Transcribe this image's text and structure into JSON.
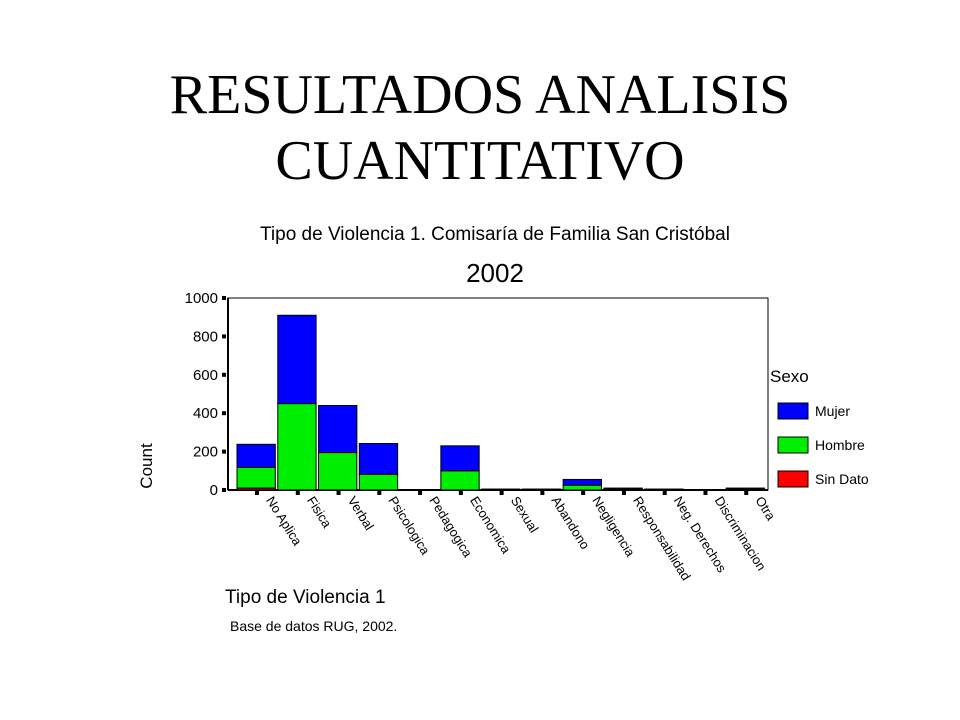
{
  "slide": {
    "title_line1": "RESULTADOS ANALISIS",
    "title_line2": "CUANTITATIVO"
  },
  "chart_data": {
    "type": "bar",
    "stacked": true,
    "title": "Tipo de Violencia 1. Comisaría de Familia San Cristóbal",
    "subtitle": "2002",
    "xlabel": "Tipo de Violencia 1",
    "ylabel": "Count",
    "ylim": [
      0,
      1000
    ],
    "yticks": [
      0,
      200,
      400,
      600,
      800,
      1000
    ],
    "categories": [
      "No Aplica",
      "Fisica",
      "Verbal",
      "Psicologica",
      "Pedagogica",
      "Economica",
      "Sexual",
      "Abandono",
      "Negligencia",
      "Responsabilidad",
      "Neg. Derechos",
      "Discriminacion",
      "Otra"
    ],
    "legend_title": "Sexo",
    "legend_position": "right",
    "series": [
      {
        "name": "Sin Dato",
        "color": "#ff0000",
        "values": [
          10,
          0,
          0,
          0,
          0,
          0,
          0,
          0,
          0,
          0,
          0,
          0,
          0
        ]
      },
      {
        "name": "Hombre",
        "color": "#00ee00",
        "values": [
          108,
          450,
          195,
          82,
          0,
          100,
          0,
          0,
          25,
          8,
          5,
          0,
          8
        ]
      },
      {
        "name": "Mujer",
        "color": "#0000ff",
        "values": [
          120,
          460,
          245,
          160,
          0,
          130,
          5,
          5,
          30,
          2,
          0,
          0,
          2
        ]
      }
    ],
    "source_note": "Base de datos RUG, 2002."
  }
}
